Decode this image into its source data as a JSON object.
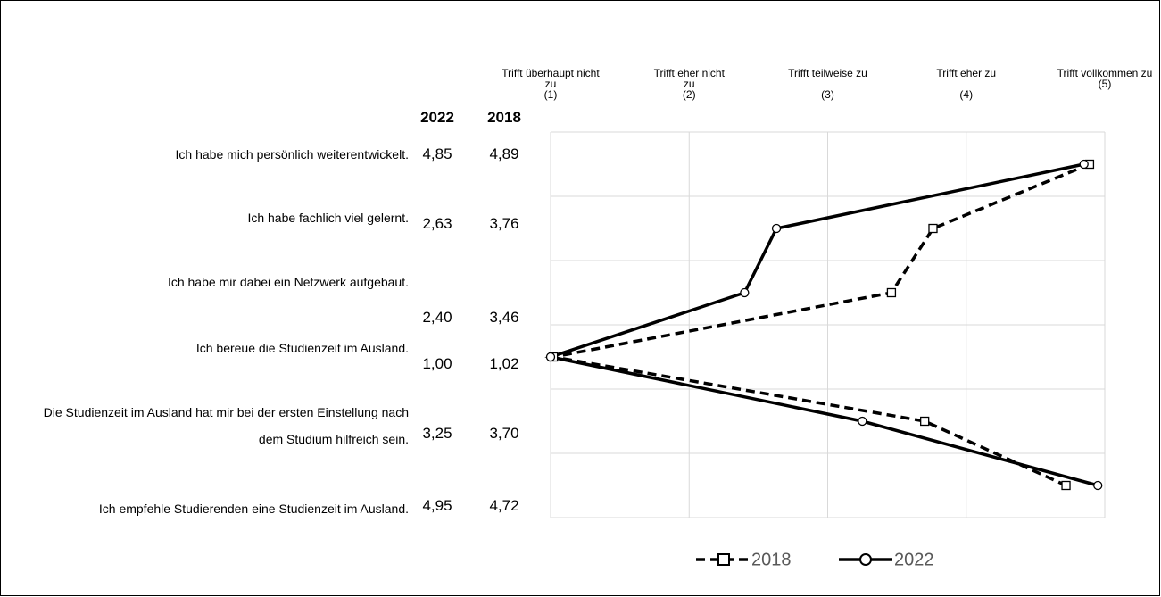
{
  "chart_data": {
    "type": "line",
    "categories": [
      "Ich habe mich persönlich weiterentwickelt.",
      "Ich habe fachlich viel gelernt.",
      "Ich habe mir dabei ein Netzwerk aufgebaut.",
      "Ich bereue die Studienzeit im Ausland.",
      "Die Studienzeit im Ausland hat mir bei der ersten Einstellung nach dem Studium hilfreich sein.",
      "Ich empfehle Studierenden eine Studienzeit im Ausland."
    ],
    "xlim": [
      1,
      5
    ],
    "xticks": [
      {
        "value": 1,
        "label": "Trifft überhaupt nicht zu\n(1)"
      },
      {
        "value": 2,
        "label": "Trifft eher nicht zu\n(2)"
      },
      {
        "value": 3,
        "label": "Trifft teilweise zu\n\n(3)"
      },
      {
        "value": 4,
        "label": "Trifft eher zu\n\n(4)"
      },
      {
        "value": 5,
        "label": "Trifft vollkommen zu\n(5)"
      }
    ],
    "grid": true,
    "legend": "bottom",
    "series": [
      {
        "name": "2018",
        "color": "#000000",
        "line_style": "dashed",
        "marker": "square",
        "values": [
          4.89,
          3.76,
          3.46,
          1.02,
          3.7,
          4.72
        ],
        "value_labels": [
          "4,89",
          "3,76",
          "3,46",
          "1,02",
          "3,70",
          "4,72"
        ]
      },
      {
        "name": "2022",
        "color": "#000000",
        "line_style": "solid",
        "marker": "circle",
        "values": [
          4.85,
          2.63,
          2.4,
          1.0,
          3.25,
          4.95
        ],
        "value_labels": [
          "4,85",
          "2,63",
          "2,40",
          "1,00",
          "3,25",
          "4,95"
        ]
      }
    ]
  }
}
